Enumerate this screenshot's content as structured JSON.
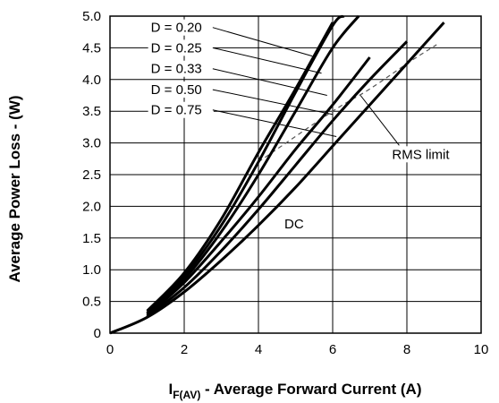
{
  "chart_data": {
    "type": "line",
    "title": "",
    "xlabel_main": "I",
    "xlabel_sub": "F(AV)",
    "xlabel_rest": " - Average Forward Current (A)",
    "ylabel": "Average Power Loss - (W)",
    "xlim": [
      0,
      10
    ],
    "ylim": [
      0,
      5.0
    ],
    "x_ticks": [
      "0",
      "2",
      "4",
      "6",
      "8",
      "10"
    ],
    "y_ticks": [
      "0",
      "0.5",
      "1.0",
      "1.5",
      "2.0",
      "2.5",
      "3.0",
      "3.5",
      "4.0",
      "4.5",
      "5.0"
    ],
    "grid": true,
    "series": [
      {
        "name": "D = 0.20",
        "points": [
          [
            1.0,
            0.35
          ],
          [
            2,
            0.95
          ],
          [
            3,
            1.8
          ],
          [
            4,
            2.85
          ],
          [
            5,
            3.85
          ],
          [
            6,
            4.9
          ]
        ]
      },
      {
        "name": "D = 0.25",
        "points": [
          [
            1.0,
            0.32
          ],
          [
            2,
            0.9
          ],
          [
            3,
            1.7
          ],
          [
            4,
            2.7
          ],
          [
            5,
            3.8
          ],
          [
            6,
            4.85
          ],
          [
            6.3,
            5.0
          ]
        ]
      },
      {
        "name": "D = 0.33",
        "points": [
          [
            1.0,
            0.3
          ],
          [
            2,
            0.85
          ],
          [
            3,
            1.6
          ],
          [
            4,
            2.5
          ],
          [
            5,
            3.5
          ],
          [
            6,
            4.5
          ],
          [
            6.7,
            5.0
          ]
        ]
      },
      {
        "name": "D = 0.50",
        "points": [
          [
            1.0,
            0.28
          ],
          [
            2,
            0.8
          ],
          [
            3,
            1.45
          ],
          [
            4,
            2.15
          ],
          [
            5,
            2.9
          ],
          [
            6,
            3.6
          ],
          [
            7,
            4.35
          ]
        ]
      },
      {
        "name": "D = 0.75",
        "points": [
          [
            1.0,
            0.26
          ],
          [
            2,
            0.72
          ],
          [
            3,
            1.3
          ],
          [
            4,
            1.95
          ],
          [
            5,
            2.65
          ],
          [
            6,
            3.35
          ],
          [
            7,
            4.0
          ],
          [
            8,
            4.6
          ]
        ]
      },
      {
        "name": "DC",
        "points": [
          [
            0,
            0
          ],
          [
            1,
            0.25
          ],
          [
            2,
            0.65
          ],
          [
            3,
            1.15
          ],
          [
            4,
            1.7
          ],
          [
            5,
            2.3
          ],
          [
            6,
            2.95
          ],
          [
            7,
            3.6
          ],
          [
            8,
            4.25
          ],
          [
            9,
            4.9
          ]
        ]
      }
    ],
    "rms_limit": {
      "name": "RMS limit",
      "points": [
        [
          4,
          2.7
        ],
        [
          6,
          3.5
        ],
        [
          7,
          3.85
        ],
        [
          8,
          4.25
        ],
        [
          8.8,
          4.55
        ]
      ]
    },
    "annotations": [
      {
        "text": "D = 0.20",
        "label_at": [
          1.1,
          4.75
        ],
        "arrow_to": [
          5.45,
          4.37
        ]
      },
      {
        "text": "D = 0.25",
        "label_at": [
          1.1,
          4.43
        ],
        "arrow_to": [
          5.7,
          4.1
        ]
      },
      {
        "text": "D = 0.33",
        "label_at": [
          1.1,
          4.1
        ],
        "arrow_to": [
          5.85,
          3.75
        ]
      },
      {
        "text": "D = 0.50",
        "label_at": [
          1.1,
          3.77
        ],
        "arrow_to": [
          6.0,
          3.45
        ]
      },
      {
        "text": "D = 0.75",
        "label_at": [
          1.1,
          3.45
        ],
        "arrow_to": [
          6.1,
          3.1
        ]
      },
      {
        "text": "RMS limit",
        "label_at": [
          7.6,
          2.75
        ],
        "arrow_to": [
          6.75,
          3.75
        ]
      },
      {
        "text": "DC",
        "label_at": [
          4.7,
          1.65
        ],
        "arrow_to": null
      }
    ]
  }
}
